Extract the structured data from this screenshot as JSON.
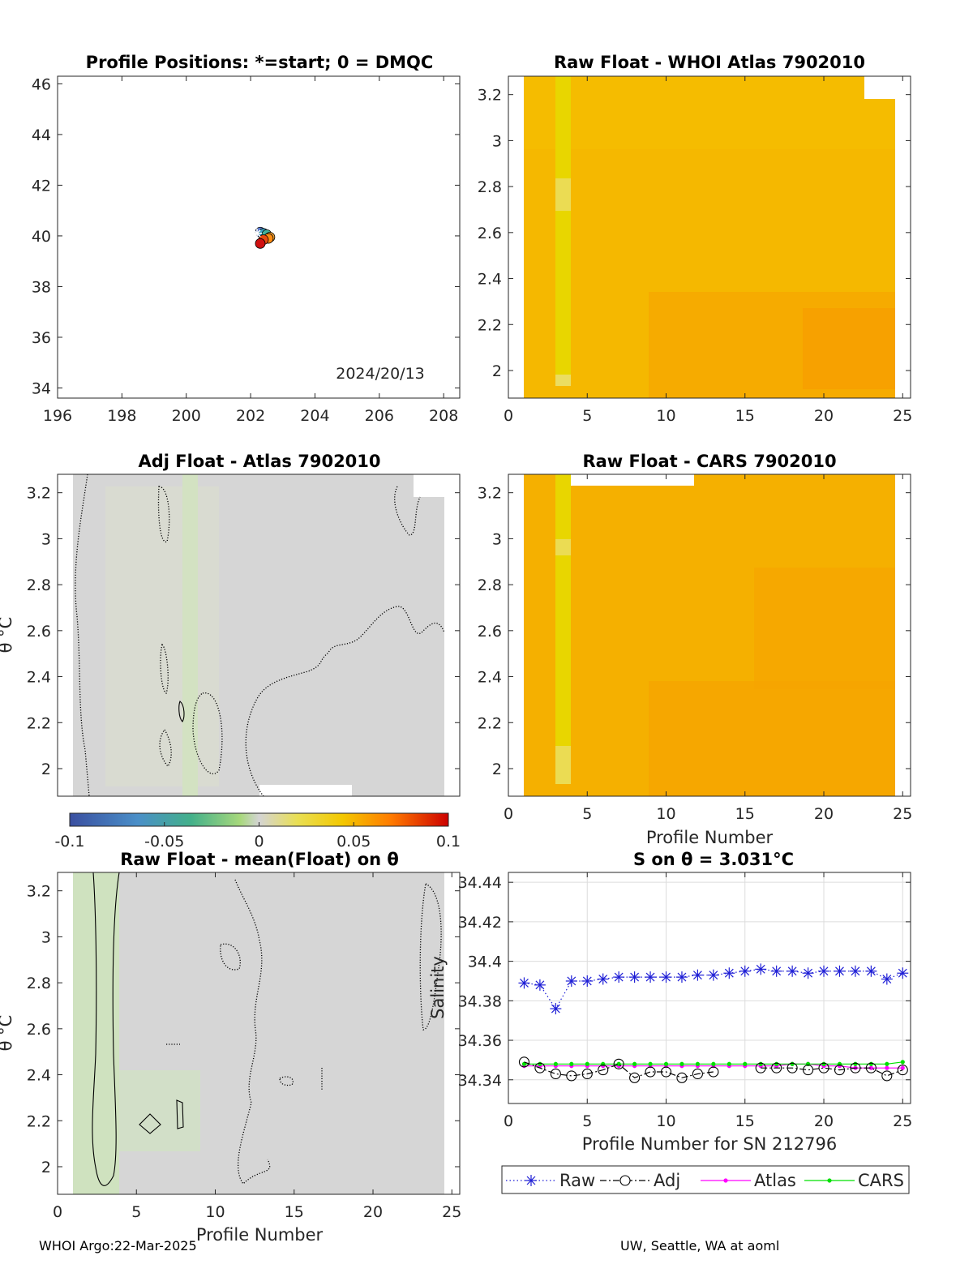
{
  "footer": {
    "left": "WHOI Argo:22-Mar-2025",
    "right": "UW, Seattle, WA at aoml"
  },
  "colors": {
    "raw": "#1f1fd6",
    "adj": "#000000",
    "atlas": "#ff00ff",
    "cars": "#00e000",
    "anomaly_fill": "#d4d4d4",
    "map_bg": "#ffffff"
  },
  "chart_data": [
    {
      "id": "positions",
      "type": "scatter",
      "title": "Profile Positions: *=start; 0 = DMQC",
      "xlabel": "",
      "ylabel": "",
      "xlim": [
        196,
        208.5
      ],
      "ylim": [
        33.6,
        46.3
      ],
      "xticks": [
        "196",
        "198",
        "200",
        "202",
        "204",
        "206",
        "208"
      ],
      "yticks": [
        "34",
        "36",
        "38",
        "40",
        "42",
        "44",
        "46"
      ],
      "date_label": "2024/20/13",
      "points": [
        {
          "x": 202.3,
          "y": 40.15,
          "color": "#5a7bd1"
        },
        {
          "x": 202.4,
          "y": 40.1,
          "color": "#3aa1c0"
        },
        {
          "x": 202.5,
          "y": 40.05,
          "color": "#42b29a"
        },
        {
          "x": 202.6,
          "y": 39.95,
          "color": "#f0a030"
        },
        {
          "x": 202.55,
          "y": 39.9,
          "color": "#ff8c10"
        },
        {
          "x": 202.4,
          "y": 39.85,
          "color": "#e84a10"
        },
        {
          "x": 202.3,
          "y": 39.7,
          "color": "#d01010"
        }
      ],
      "start": {
        "x": 202.2,
        "y": 40.1
      }
    },
    {
      "id": "raw_atlas",
      "type": "heatmap",
      "title": "Raw Float - WHOI Atlas  7902010",
      "xlabel": "",
      "ylabel": "",
      "xlim": [
        0,
        25.5
      ],
      "ylim": [
        1.88,
        3.28
      ],
      "xticks": [
        "0",
        "5",
        "10",
        "15",
        "20",
        "25"
      ],
      "yticks": [
        "2",
        "2.2",
        "2.4",
        "2.6",
        "2.8",
        "3",
        "3.2"
      ],
      "fill": "#f5b800",
      "stripe_profile": 3,
      "stripe_color": "#e7d800"
    },
    {
      "id": "adj_atlas",
      "type": "heatmap",
      "title": "Adj Float - Atlas  7902010",
      "xlabel": "",
      "ylabel": "θ °C",
      "xlim": [
        0,
        25.5
      ],
      "ylim": [
        1.88,
        3.28
      ],
      "xticks": [],
      "yticks": [
        "2",
        "2.2",
        "2.4",
        "2.6",
        "2.8",
        "3",
        "3.2"
      ],
      "colorbar": {
        "min": -0.1,
        "max": 0.1,
        "ticks": [
          "-0.1",
          "-0.05",
          "0",
          "0.05",
          "0.1"
        ]
      }
    },
    {
      "id": "raw_cars",
      "type": "heatmap",
      "title": "Raw Float - CARS  7902010",
      "xlabel": "Profile Number",
      "ylabel": "",
      "xlim": [
        0,
        25.5
      ],
      "ylim": [
        1.88,
        3.28
      ],
      "xticks": [
        "0",
        "5",
        "10",
        "15",
        "20",
        "25"
      ],
      "yticks": [
        "2",
        "2.2",
        "2.4",
        "2.6",
        "2.8",
        "3",
        "3.2"
      ],
      "fill": "#f5b000",
      "stripe_profile": 3,
      "stripe_color": "#e7d800"
    },
    {
      "id": "raw_mean",
      "type": "heatmap",
      "title": "Raw Float - mean(Float) on θ",
      "xlabel": "Profile Number",
      "ylabel": "θ °C",
      "xlim": [
        0,
        25.5
      ],
      "ylim": [
        1.88,
        3.28
      ],
      "xticks": [
        "0",
        "5",
        "10",
        "15",
        "20",
        "25"
      ],
      "yticks": [
        "2",
        "2.2",
        "2.4",
        "2.6",
        "2.8",
        "3",
        "3.2"
      ]
    },
    {
      "id": "salinity",
      "type": "line",
      "title": "S on θ = 3.031°C",
      "xlabel": "Profile Number for SN 212796",
      "ylabel": "Salinity",
      "xlim": [
        0,
        25.5
      ],
      "ylim": [
        34.328,
        34.445
      ],
      "xticks": [
        "0",
        "5",
        "10",
        "15",
        "20",
        "25"
      ],
      "yticks": [
        "34.34",
        "34.36",
        "34.38",
        "34.4",
        "34.42",
        "34.44"
      ],
      "x": [
        1,
        2,
        3,
        4,
        5,
        6,
        7,
        8,
        9,
        10,
        11,
        12,
        13,
        14,
        15,
        16,
        17,
        18,
        19,
        20,
        21,
        22,
        23,
        24,
        25
      ],
      "series": [
        {
          "name": "Raw",
          "marker": "star",
          "style": "dotted",
          "values": [
            34.389,
            34.388,
            34.376,
            34.39,
            34.39,
            34.391,
            34.392,
            34.392,
            34.392,
            34.392,
            34.392,
            34.393,
            34.393,
            34.394,
            34.395,
            34.396,
            34.395,
            34.395,
            34.394,
            34.395,
            34.395,
            34.395,
            34.395,
            34.391,
            34.394
          ]
        },
        {
          "name": "Adj",
          "marker": "circle",
          "style": "dashdot",
          "values": [
            34.349,
            34.346,
            34.343,
            34.342,
            34.343,
            34.345,
            34.348,
            34.341,
            34.344,
            34.344,
            34.341,
            34.343,
            34.344,
            null,
            null,
            34.346,
            34.346,
            34.346,
            34.345,
            34.346,
            34.345,
            34.346,
            34.346,
            34.342,
            34.345
          ]
        },
        {
          "name": "Atlas",
          "marker": "dot",
          "style": "solid",
          "values": [
            34.347,
            34.347,
            34.347,
            34.347,
            34.347,
            34.347,
            34.347,
            34.347,
            34.347,
            34.347,
            34.347,
            34.347,
            34.347,
            34.347,
            34.347,
            34.347,
            34.347,
            34.348,
            34.348,
            34.347,
            34.347,
            34.346,
            34.346,
            34.346,
            34.346
          ]
        },
        {
          "name": "CARS",
          "marker": "dot",
          "style": "solid",
          "values": [
            34.348,
            34.348,
            34.348,
            34.348,
            34.348,
            34.348,
            34.348,
            34.348,
            34.348,
            34.348,
            34.348,
            34.348,
            34.348,
            34.348,
            34.348,
            34.348,
            34.348,
            34.348,
            34.348,
            34.348,
            34.348,
            34.348,
            34.348,
            34.348,
            34.349
          ]
        }
      ],
      "legend": "bottom"
    }
  ]
}
